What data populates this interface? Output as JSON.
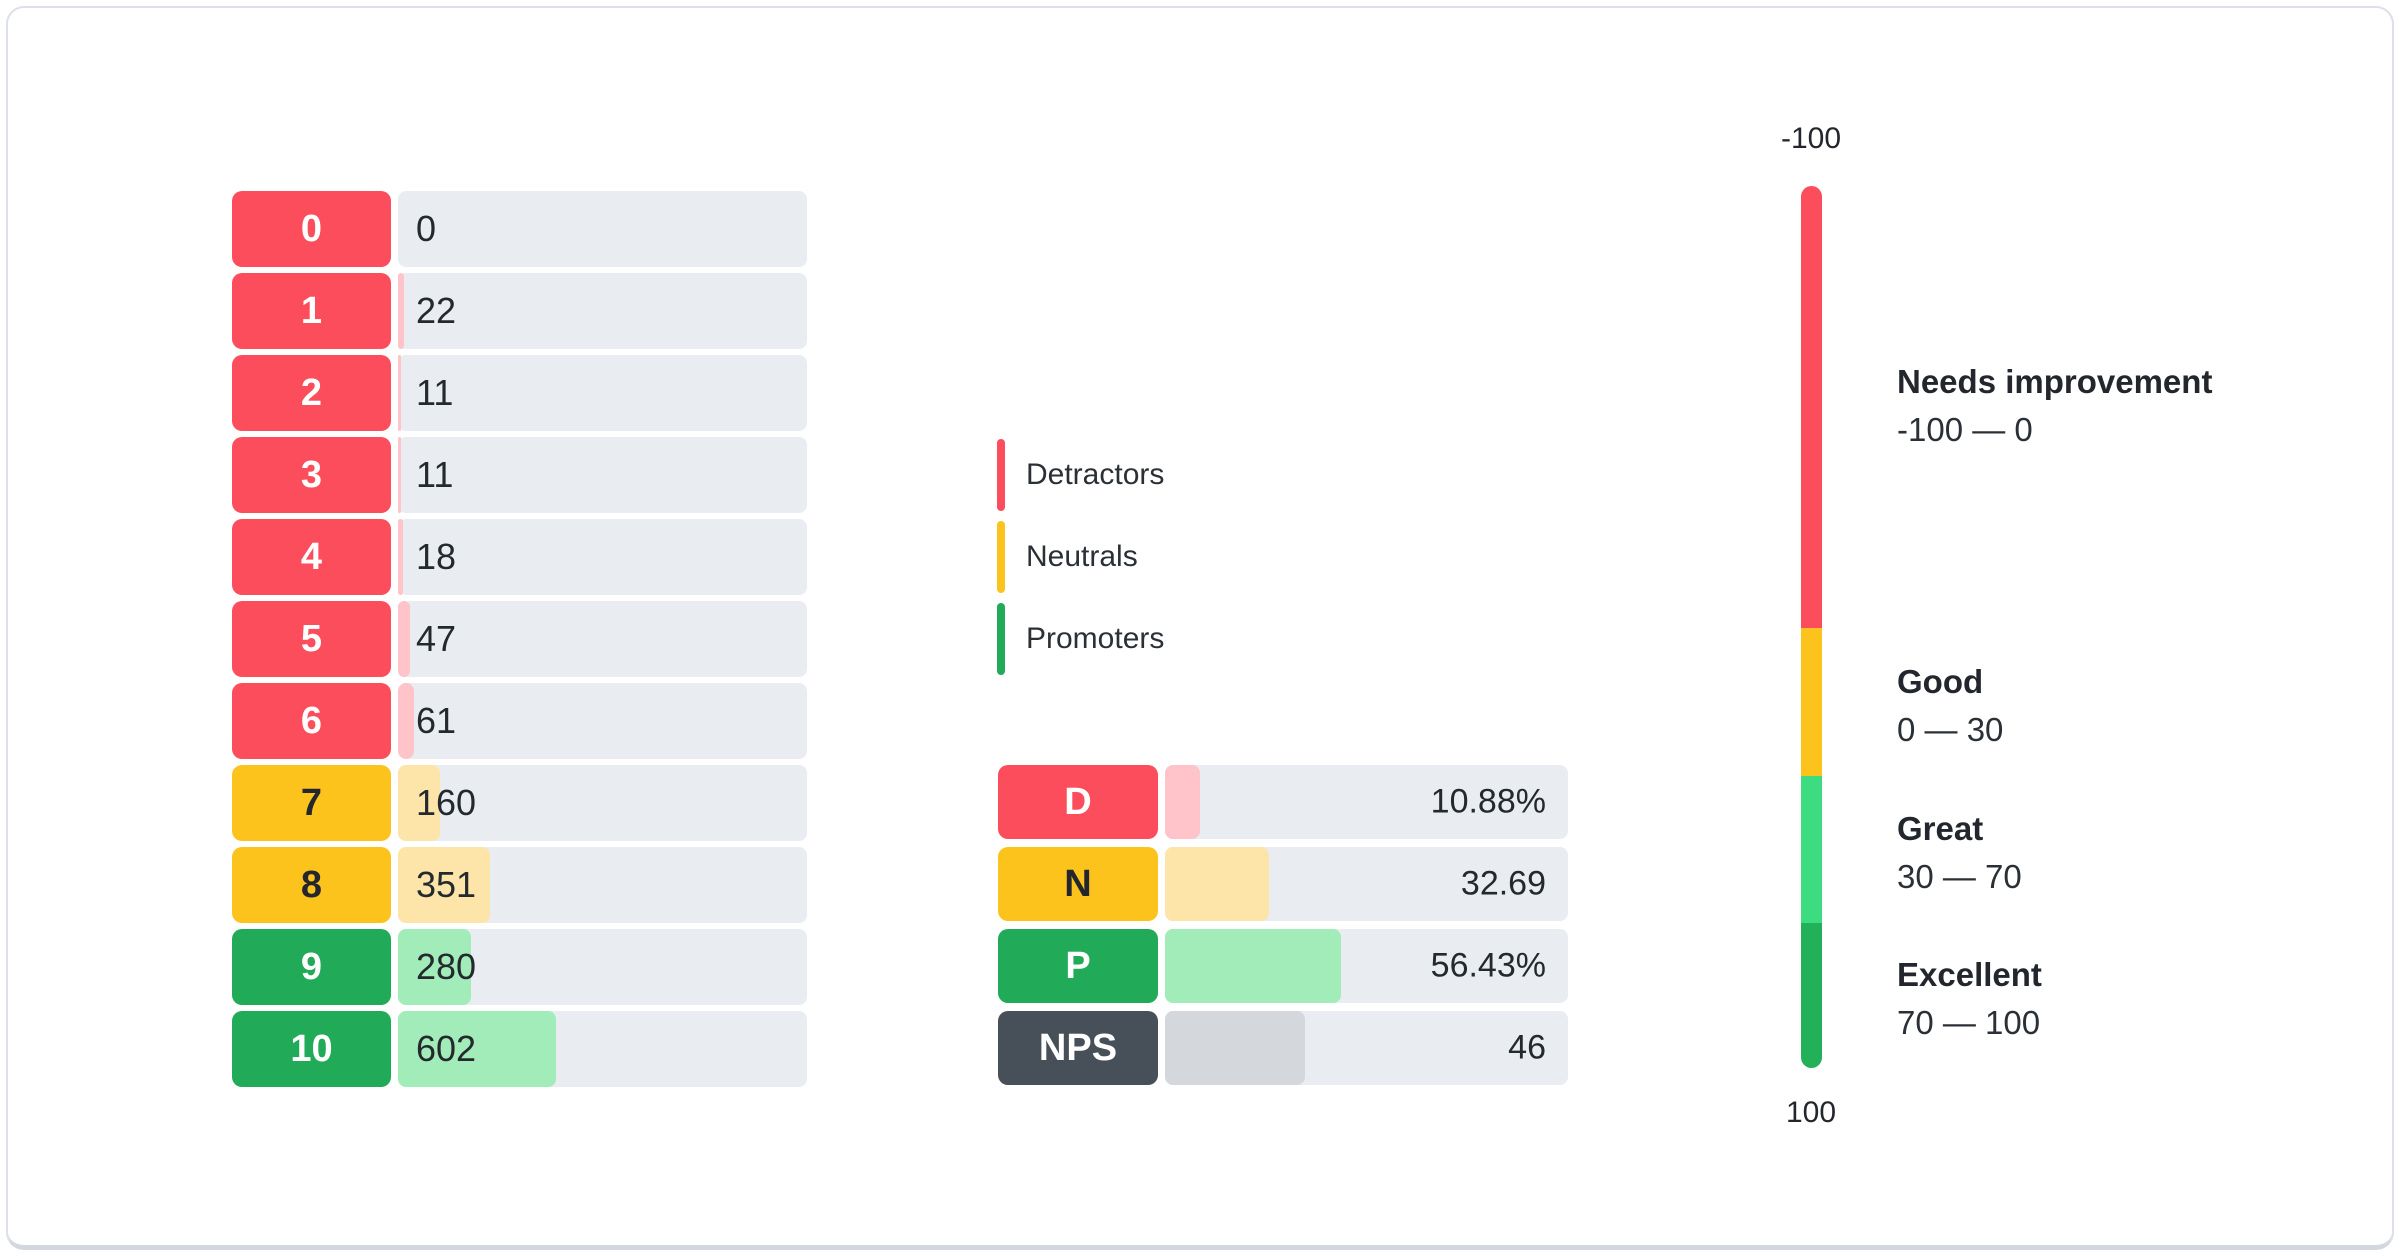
{
  "colors": {
    "track": "#e9edf1",
    "groups": {
      "detractor": {
        "solid": "#fc4d5c",
        "tint": "#ffc3ca",
        "text": "#ffffff"
      },
      "neutral": {
        "solid": "#fcc31d",
        "tint": "#fde4a8",
        "text": "#23272d"
      },
      "promoter": {
        "solid": "#21aa58",
        "tint": "#a2ecba",
        "text": "#ffffff"
      },
      "nps": {
        "solid": "#474f59",
        "tint": "#d4d8dc",
        "text": "#ffffff"
      }
    },
    "gauge": {
      "red": "#fc4d5c",
      "yellow": "#fcc31d",
      "light_green": "#3edc81",
      "dark_green": "#22b159"
    }
  },
  "distribution": {
    "rows": [
      {
        "score": "0",
        "value": "0",
        "group": "detractor",
        "fill_pct": 0
      },
      {
        "score": "1",
        "value": "22",
        "group": "detractor",
        "fill_pct": 1.41
      },
      {
        "score": "2",
        "value": "11",
        "group": "detractor",
        "fill_pct": 0.7
      },
      {
        "score": "3",
        "value": "11",
        "group": "detractor",
        "fill_pct": 0.7
      },
      {
        "score": "4",
        "value": "18",
        "group": "detractor",
        "fill_pct": 1.15
      },
      {
        "score": "5",
        "value": "47",
        "group": "detractor",
        "fill_pct": 3.01
      },
      {
        "score": "6",
        "value": "61",
        "group": "detractor",
        "fill_pct": 3.9
      },
      {
        "score": "7",
        "value": "160",
        "group": "neutral",
        "fill_pct": 10.24
      },
      {
        "score": "8",
        "value": "351",
        "group": "neutral",
        "fill_pct": 22.46
      },
      {
        "score": "9",
        "value": "280",
        "group": "promoter",
        "fill_pct": 17.91
      },
      {
        "score": "10",
        "value": "602",
        "group": "promoter",
        "fill_pct": 38.52
      }
    ]
  },
  "legend": {
    "items": [
      {
        "label": "Detractors",
        "group": "detractor"
      },
      {
        "label": "Neutrals",
        "group": "neutral"
      },
      {
        "label": "Promoters",
        "group": "promoter"
      }
    ]
  },
  "summary": {
    "rows": [
      {
        "label": "D",
        "value": "10.88%",
        "group": "detractor",
        "fill_pct": 8.7
      },
      {
        "label": "N",
        "value": "32.69",
        "group": "neutral",
        "fill_pct": 25.8
      },
      {
        "label": "P",
        "value": "56.43%",
        "group": "promoter",
        "fill_pct": 43.7
      },
      {
        "label": "NPS",
        "value": "46",
        "group": "nps",
        "fill_pct": 34.7
      }
    ]
  },
  "gauge": {
    "top_label": "-100",
    "bottom_label": "100",
    "segments": [
      {
        "color_key": "red",
        "height_pct": 50.1
      },
      {
        "color_key": "yellow",
        "height_pct": 16.8
      },
      {
        "color_key": "light_green",
        "height_pct": 16.7
      },
      {
        "color_key": "dark_green",
        "height_pct": 16.4
      }
    ],
    "zones": [
      {
        "title": "Needs improvement",
        "range": "-100 — 0"
      },
      {
        "title": "Good",
        "range": "0 — 30"
      },
      {
        "title": "Great",
        "range": "30 — 70"
      },
      {
        "title": "Excellent",
        "range": "70 — 100"
      }
    ]
  },
  "chart_data": [
    {
      "type": "bar",
      "orientation": "horizontal",
      "title": "NPS score distribution",
      "categories": [
        "0",
        "1",
        "2",
        "3",
        "4",
        "5",
        "6",
        "7",
        "8",
        "9",
        "10"
      ],
      "values": [
        0,
        22,
        11,
        11,
        18,
        47,
        61,
        160,
        351,
        280,
        602
      ],
      "groups": {
        "detractors": "scores 0-6",
        "neutrals": "scores 7-8",
        "promoters": "scores 9-10"
      },
      "legend_position": "right",
      "grid": false
    },
    {
      "type": "bar",
      "orientation": "horizontal",
      "title": "NPS summary",
      "categories": [
        "D",
        "N",
        "P",
        "NPS"
      ],
      "values": [
        10.88,
        32.69,
        56.43,
        46
      ],
      "value_labels": [
        "10.88%",
        "32.69",
        "56.43%",
        "46"
      ]
    },
    {
      "type": "gauge",
      "orientation": "vertical",
      "axis_range": [
        -100,
        100
      ],
      "zones": [
        {
          "label": "Needs improvement",
          "range": [
            -100,
            0
          ]
        },
        {
          "label": "Good",
          "range": [
            0,
            30
          ]
        },
        {
          "label": "Great",
          "range": [
            30,
            70
          ]
        },
        {
          "label": "Excellent",
          "range": [
            70,
            100
          ]
        }
      ]
    }
  ]
}
